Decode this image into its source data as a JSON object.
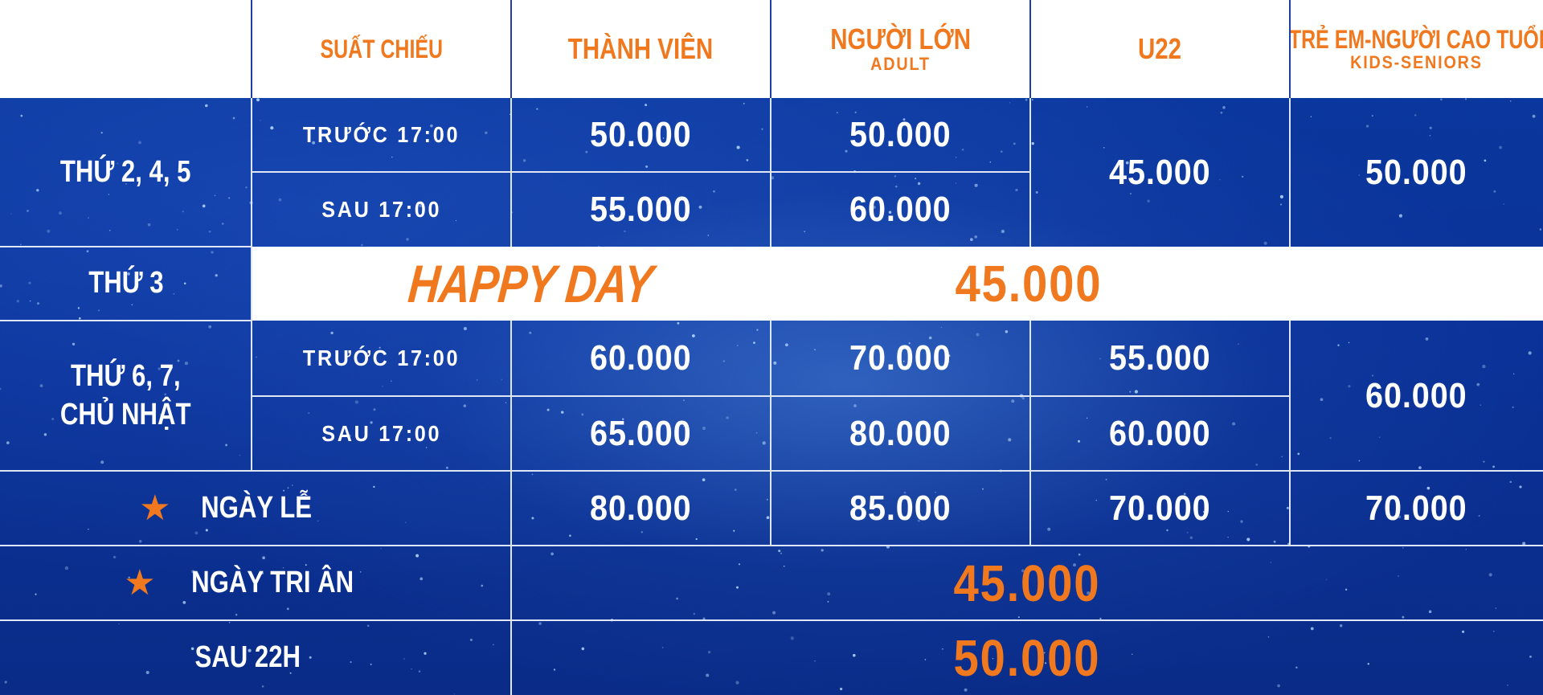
{
  "header": {
    "showtime": "SUẤT CHIẾU",
    "member": "THÀNH VIÊN",
    "adult": "NGƯỜI LỚN",
    "adult_sub": "ADULT",
    "u22": "U22",
    "kids_seniors": "TRẺ EM-NGƯỜI CAO TUỔI",
    "kids_seniors_sub": "KIDS-SENIORS"
  },
  "rows": {
    "weekday": {
      "label": "THỨ 2, 4, 5",
      "before_label": "TRƯỚC 17:00",
      "after_label": "SAU 17:00",
      "member_before": "50.000",
      "member_after": "55.000",
      "adult_before": "50.000",
      "adult_after": "60.000",
      "u22": "45.000",
      "kids": "50.000"
    },
    "tuesday": {
      "label": "THỨ 3",
      "happy": "HAPPY DAY",
      "price": "45.000"
    },
    "weekend": {
      "label_line1": "THỨ 6, 7,",
      "label_line2": "CHỦ NHẬT",
      "before_label": "TRƯỚC 17:00",
      "after_label": "SAU 17:00",
      "member_before": "60.000",
      "member_after": "65.000",
      "adult_before": "70.000",
      "adult_after": "80.000",
      "u22_before": "55.000",
      "u22_after": "60.000",
      "kids": "60.000"
    },
    "holiday": {
      "label": "NGÀY LỄ",
      "member": "80.000",
      "adult": "85.000",
      "u22": "70.000",
      "kids": "70.000"
    },
    "appreciation": {
      "label": "NGÀY TRI ÂN",
      "price": "45.000"
    },
    "late": {
      "label": "SAU 22H",
      "price": "50.000"
    }
  },
  "icons": {
    "star": "star-icon"
  },
  "colors": {
    "accent_orange": "#f0781e",
    "background_blue": "#0b3aa0",
    "header_white": "#ffffff",
    "text_white": "#ffffff"
  }
}
